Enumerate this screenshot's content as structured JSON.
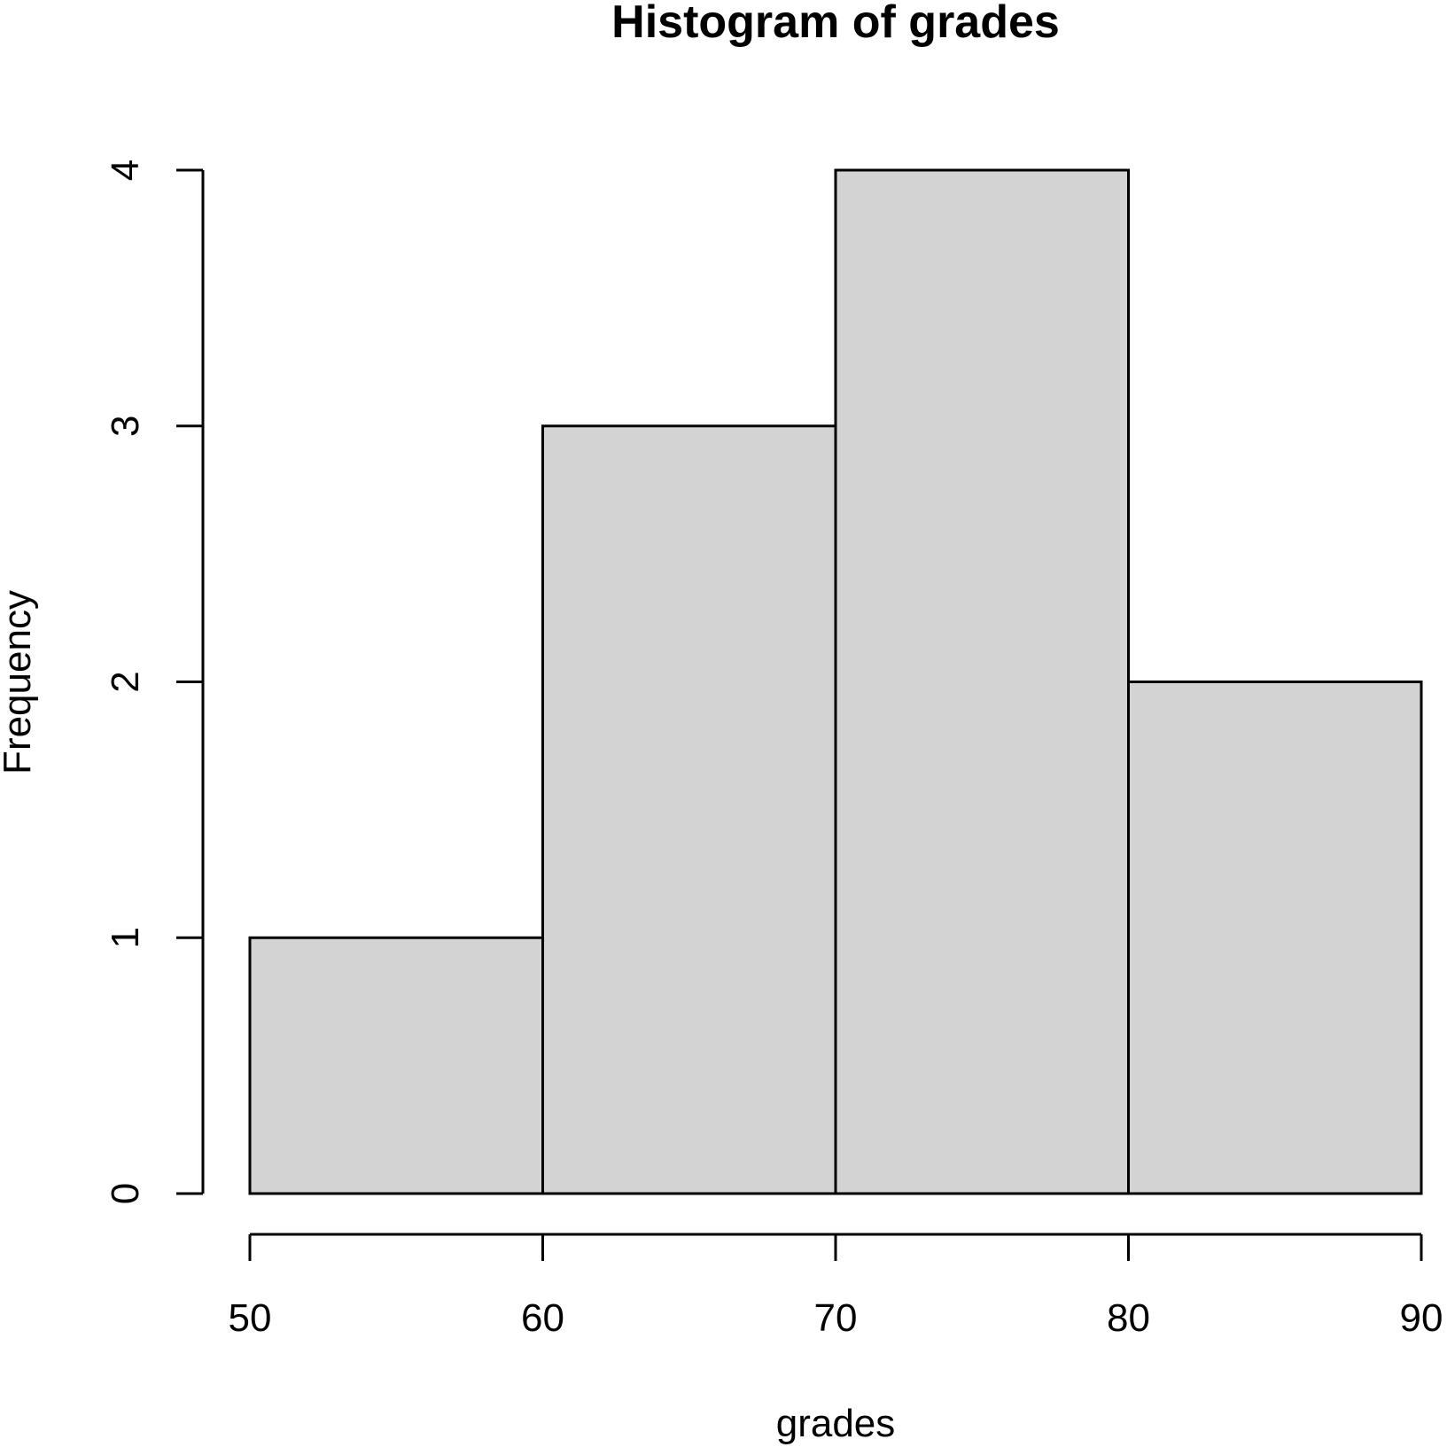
{
  "chart_data": {
    "type": "bar",
    "title": "Histogram of grades",
    "xlabel": "grades",
    "ylabel": "Frequency",
    "bins": [
      {
        "start": 50,
        "end": 60,
        "count": 1
      },
      {
        "start": 60,
        "end": 70,
        "count": 3
      },
      {
        "start": 70,
        "end": 80,
        "count": 4
      },
      {
        "start": 80,
        "end": 90,
        "count": 2
      }
    ],
    "xlim": [
      50,
      90
    ],
    "ylim": [
      0,
      4
    ],
    "x_ticks": [
      "50",
      "60",
      "70",
      "80",
      "90"
    ],
    "y_ticks": [
      "0",
      "1",
      "2",
      "3",
      "4"
    ],
    "grid": false,
    "legend": "none",
    "bar_color": "#d3d3d3",
    "edge_color": "#000000"
  }
}
